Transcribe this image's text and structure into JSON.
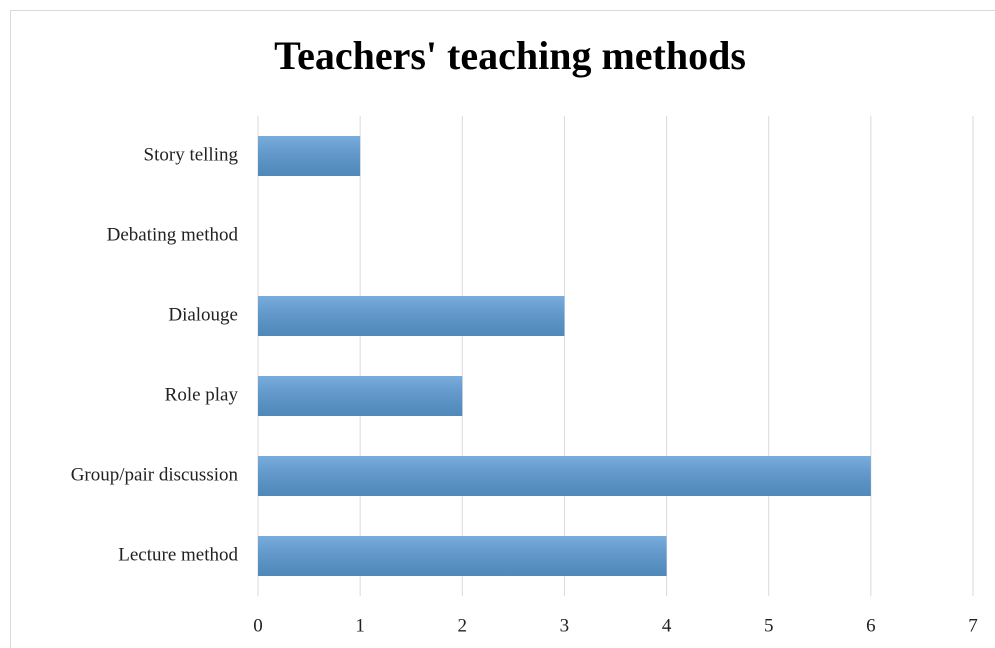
{
  "chart_data": {
    "type": "barh",
    "title": "Teachers' teaching methods",
    "categories": [
      "Story telling",
      "Debating method",
      "Dialouge",
      "Role play",
      "Group/pair discussion",
      "Lecture method"
    ],
    "values": [
      1,
      0,
      3,
      2,
      6,
      4
    ],
    "color": "#5b9bd5",
    "xlim": [
      0,
      7
    ],
    "xticks": [
      0,
      1,
      2,
      3,
      4,
      5,
      6,
      7
    ],
    "grid": true
  }
}
